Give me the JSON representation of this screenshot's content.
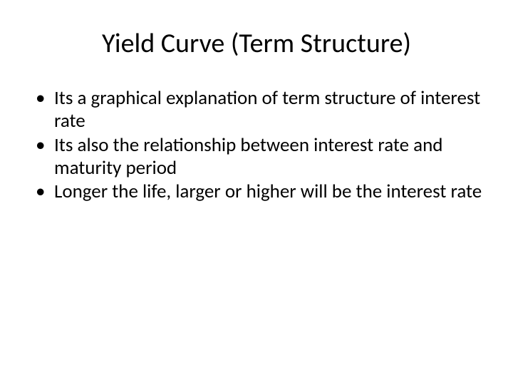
{
  "slide": {
    "title": "Yield Curve (Term Structure)",
    "bullets": [
      "Its a graphical explanation of term structure of interest rate",
      "Its also the relationship between interest rate and maturity period",
      "Longer the life, larger or higher will be the interest rate"
    ]
  },
  "styles": {
    "background_color": "#ffffff",
    "text_color": "#000000",
    "title_fontsize": 38,
    "body_fontsize": 27,
    "font_family": "Calibri"
  }
}
